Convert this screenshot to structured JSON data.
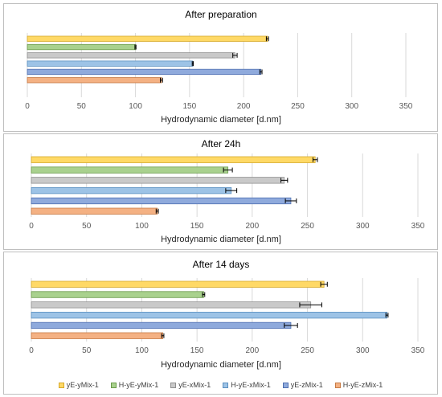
{
  "colors": {
    "gridline": "#d9d9d9",
    "axis_text": "#595959",
    "title_text": "#000000",
    "error_bar": "#000000"
  },
  "chart_data": [
    {
      "type": "bar",
      "orientation": "horizontal",
      "title": "After  preparation",
      "xlabel": "Hydrodynamic diameter [d.nm]",
      "xlim": [
        0,
        350
      ],
      "xticks": [
        0,
        50,
        100,
        150,
        200,
        250,
        300,
        350
      ],
      "grid": "vertical",
      "series": [
        {
          "name": "yE-yMix-1",
          "value": 222,
          "error": 1,
          "fill": "#ffd966",
          "stroke": "#d6a82a"
        },
        {
          "name": "H-yE-yMix-1",
          "value": 100,
          "error": 0.5,
          "fill": "#a9d18e",
          "stroke": "#6a9a4a"
        },
        {
          "name": "yE-xMix-1",
          "value": 192,
          "error": 2,
          "fill": "#c9c9c9",
          "stroke": "#8f8f8f"
        },
        {
          "name": "H-yE-xMix-1",
          "value": 153,
          "error": 0.5,
          "fill": "#9dc3e6",
          "stroke": "#5a8fc0"
        },
        {
          "name": "yE-zMix-1",
          "value": 216,
          "error": 1,
          "fill": "#8faadc",
          "stroke": "#4e6fb0"
        },
        {
          "name": "H-yE-zMix-1",
          "value": 124,
          "error": 1,
          "fill": "#f4b183",
          "stroke": "#c67a44"
        }
      ]
    },
    {
      "type": "bar",
      "orientation": "horizontal",
      "title": "After  24h",
      "xlabel": "Hydrodynamic diameter [d.nm]",
      "xlim": [
        0,
        350
      ],
      "xticks": [
        0,
        50,
        100,
        150,
        200,
        250,
        300,
        350
      ],
      "grid": "vertical",
      "series": [
        {
          "name": "yE-yMix-1",
          "value": 257,
          "error": 2,
          "fill": "#ffd966",
          "stroke": "#d6a82a"
        },
        {
          "name": "H-yE-yMix-1",
          "value": 178,
          "error": 4,
          "fill": "#a9d18e",
          "stroke": "#6a9a4a"
        },
        {
          "name": "yE-xMix-1",
          "value": 229,
          "error": 3,
          "fill": "#c9c9c9",
          "stroke": "#8f8f8f"
        },
        {
          "name": "H-yE-xMix-1",
          "value": 181,
          "error": 5,
          "fill": "#9dc3e6",
          "stroke": "#5a8fc0"
        },
        {
          "name": "yE-zMix-1",
          "value": 235,
          "error": 5,
          "fill": "#8faadc",
          "stroke": "#4e6fb0"
        },
        {
          "name": "H-yE-zMix-1",
          "value": 114,
          "error": 1,
          "fill": "#f4b183",
          "stroke": "#c67a44"
        }
      ]
    },
    {
      "type": "bar",
      "orientation": "horizontal",
      "title": "After  14 days",
      "xlabel": "Hydrodynamic diameter [d.nm]",
      "xlim": [
        0,
        350
      ],
      "xticks": [
        0,
        50,
        100,
        150,
        200,
        250,
        300,
        350
      ],
      "grid": "vertical",
      "legend_position": "bottom",
      "series": [
        {
          "name": "yE-yMix-1",
          "value": 265,
          "error": 3,
          "fill": "#ffd966",
          "stroke": "#d6a82a"
        },
        {
          "name": "H-yE-yMix-1",
          "value": 156,
          "error": 1,
          "fill": "#a9d18e",
          "stroke": "#6a9a4a"
        },
        {
          "name": "yE-xMix-1",
          "value": 253,
          "error": 10,
          "fill": "#c9c9c9",
          "stroke": "#8f8f8f"
        },
        {
          "name": "H-yE-xMix-1",
          "value": 322,
          "error": 1,
          "fill": "#9dc3e6",
          "stroke": "#5a8fc0"
        },
        {
          "name": "yE-zMix-1",
          "value": 235,
          "error": 6,
          "fill": "#8faadc",
          "stroke": "#4e6fb0"
        },
        {
          "name": "H-yE-zMix-1",
          "value": 119,
          "error": 1,
          "fill": "#f4b183",
          "stroke": "#c67a44"
        }
      ]
    }
  ]
}
